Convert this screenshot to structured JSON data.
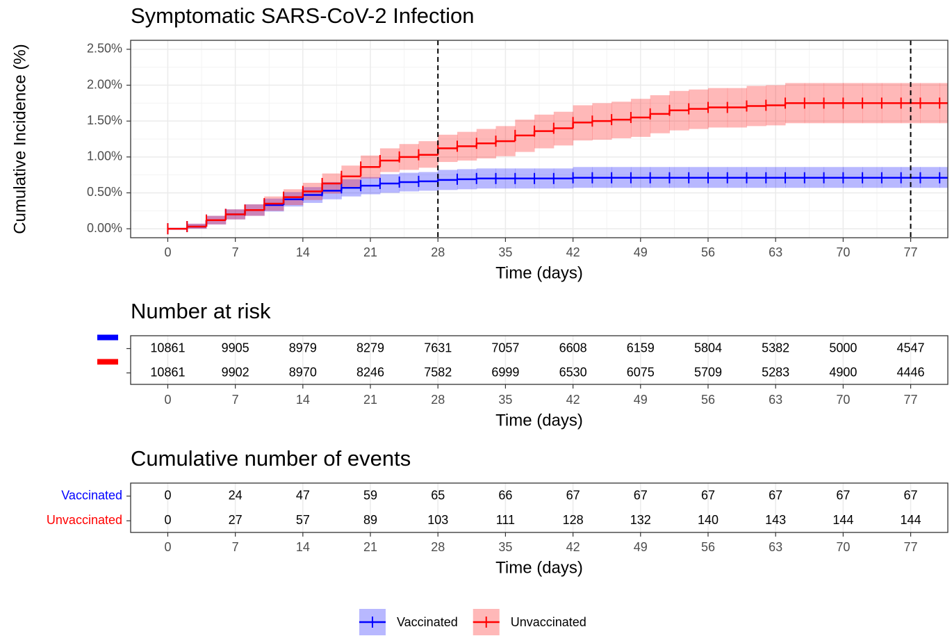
{
  "chart_data": [
    {
      "type": "step",
      "title": "Symptomatic SARS-CoV-2 Infection",
      "ylabel": "Cumulative Incidence (%)",
      "xlabel": "Time (days)",
      "x": [
        0,
        2,
        4,
        6,
        8,
        10,
        12,
        14,
        16,
        18,
        20,
        22,
        24,
        26,
        28,
        30,
        32,
        34,
        36,
        38,
        40,
        42,
        44,
        46,
        48,
        50,
        52,
        54,
        56,
        58,
        60,
        62,
        64,
        66,
        68,
        70,
        72,
        74,
        76,
        78,
        80
      ],
      "xlim": [
        -3.85,
        80.85
      ],
      "xticks": [
        0,
        7,
        14,
        21,
        28,
        35,
        42,
        49,
        56,
        63,
        70,
        77
      ],
      "ylim": [
        -0.125,
        2.625
      ],
      "yticks": [
        {
          "value": 0,
          "label": "0.00%"
        },
        {
          "value": 0.5,
          "label": "0.50%"
        },
        {
          "value": 1,
          "label": "1.00%"
        },
        {
          "value": 1.5,
          "label": "1.50%"
        },
        {
          "value": 2,
          "label": "2.00%"
        },
        {
          "value": 2.5,
          "label": "2.50%"
        }
      ],
      "grid": true,
      "vlines": [
        28,
        77
      ],
      "series": [
        {
          "name": "Vaccinated",
          "color": "#0000ff",
          "values": [
            0,
            0.03,
            0.12,
            0.2,
            0.26,
            0.33,
            0.41,
            0.47,
            0.53,
            0.57,
            0.6,
            0.63,
            0.65,
            0.66,
            0.68,
            0.69,
            0.7,
            0.7,
            0.7,
            0.7,
            0.7,
            0.71,
            0.71,
            0.71,
            0.71,
            0.71,
            0.71,
            0.71,
            0.71,
            0.71,
            0.71,
            0.71,
            0.71,
            0.71,
            0.71,
            0.71,
            0.71,
            0.71,
            0.71,
            0.71,
            0.71
          ],
          "lower": [
            0,
            0,
            0.06,
            0.13,
            0.18,
            0.24,
            0.31,
            0.36,
            0.41,
            0.45,
            0.48,
            0.5,
            0.52,
            0.53,
            0.54,
            0.55,
            0.56,
            0.56,
            0.56,
            0.56,
            0.56,
            0.57,
            0.57,
            0.57,
            0.57,
            0.57,
            0.57,
            0.57,
            0.57,
            0.57,
            0.57,
            0.57,
            0.57,
            0.57,
            0.57,
            0.57,
            0.57,
            0.57,
            0.57,
            0.57,
            0.57
          ],
          "upper": [
            0,
            0.07,
            0.18,
            0.27,
            0.34,
            0.42,
            0.51,
            0.58,
            0.65,
            0.69,
            0.72,
            0.76,
            0.78,
            0.79,
            0.82,
            0.83,
            0.84,
            0.84,
            0.84,
            0.84,
            0.84,
            0.86,
            0.86,
            0.86,
            0.86,
            0.86,
            0.86,
            0.86,
            0.86,
            0.86,
            0.86,
            0.86,
            0.86,
            0.86,
            0.86,
            0.86,
            0.86,
            0.86,
            0.86,
            0.86,
            0.86
          ]
        },
        {
          "name": "Unvaccinated",
          "color": "#ff0000",
          "values": [
            0,
            0.03,
            0.12,
            0.2,
            0.26,
            0.35,
            0.44,
            0.52,
            0.63,
            0.73,
            0.86,
            0.95,
            1.0,
            1.03,
            1.12,
            1.15,
            1.19,
            1.22,
            1.3,
            1.36,
            1.4,
            1.48,
            1.5,
            1.52,
            1.55,
            1.6,
            1.65,
            1.67,
            1.69,
            1.69,
            1.71,
            1.72,
            1.75,
            1.75,
            1.75,
            1.75,
            1.75,
            1.75,
            1.75,
            1.75,
            1.75
          ],
          "lower": [
            0,
            0,
            0.06,
            0.13,
            0.18,
            0.25,
            0.33,
            0.4,
            0.49,
            0.58,
            0.7,
            0.79,
            0.82,
            0.85,
            0.93,
            0.95,
            0.98,
            1.01,
            1.07,
            1.12,
            1.16,
            1.23,
            1.24,
            1.26,
            1.28,
            1.33,
            1.37,
            1.39,
            1.41,
            1.41,
            1.43,
            1.44,
            1.47,
            1.47,
            1.47,
            1.47,
            1.47,
            1.47,
            1.47,
            1.47,
            1.47
          ],
          "upper": [
            0,
            0.07,
            0.18,
            0.27,
            0.34,
            0.45,
            0.55,
            0.64,
            0.77,
            0.88,
            1.02,
            1.12,
            1.18,
            1.22,
            1.31,
            1.35,
            1.39,
            1.43,
            1.52,
            1.59,
            1.63,
            1.72,
            1.75,
            1.77,
            1.81,
            1.86,
            1.92,
            1.94,
            1.96,
            1.96,
            1.99,
            2.0,
            2.03,
            2.03,
            2.03,
            2.03,
            2.03,
            2.03,
            2.03,
            2.03,
            2.03
          ]
        }
      ]
    },
    {
      "type": "table",
      "title": "Number at risk",
      "xlabel": "Time (days)",
      "xlim": [
        -3.85,
        80.85
      ],
      "x": [
        0,
        7,
        14,
        21,
        28,
        35,
        42,
        49,
        56,
        63,
        70,
        77
      ],
      "xticks": [
        0,
        7,
        14,
        21,
        28,
        35,
        42,
        49,
        56,
        63,
        70,
        77
      ],
      "rows": [
        {
          "color": "#0000ff",
          "values": [
            10861,
            9905,
            8979,
            8279,
            7631,
            7057,
            6608,
            6159,
            5804,
            5382,
            5000,
            4547
          ]
        },
        {
          "color": "#ff0000",
          "values": [
            10861,
            9902,
            8970,
            8246,
            7582,
            6999,
            6530,
            6075,
            5709,
            5283,
            4900,
            4446
          ]
        }
      ]
    },
    {
      "type": "table",
      "title": "Cumulative number of events",
      "xlabel": "Time (days)",
      "xlim": [
        -3.85,
        80.85
      ],
      "x": [
        0,
        7,
        14,
        21,
        28,
        35,
        42,
        49,
        56,
        63,
        70,
        77
      ],
      "xticks": [
        0,
        7,
        14,
        21,
        28,
        35,
        42,
        49,
        56,
        63,
        70,
        77
      ],
      "rows": [
        {
          "name": "Vaccinated",
          "color": "#0000ff",
          "values": [
            0,
            24,
            47,
            59,
            65,
            66,
            67,
            67,
            67,
            67,
            67,
            67
          ]
        },
        {
          "name": "Unvaccinated",
          "color": "#ff0000",
          "values": [
            0,
            27,
            57,
            89,
            103,
            111,
            128,
            132,
            140,
            143,
            144,
            144
          ]
        }
      ]
    }
  ]
}
